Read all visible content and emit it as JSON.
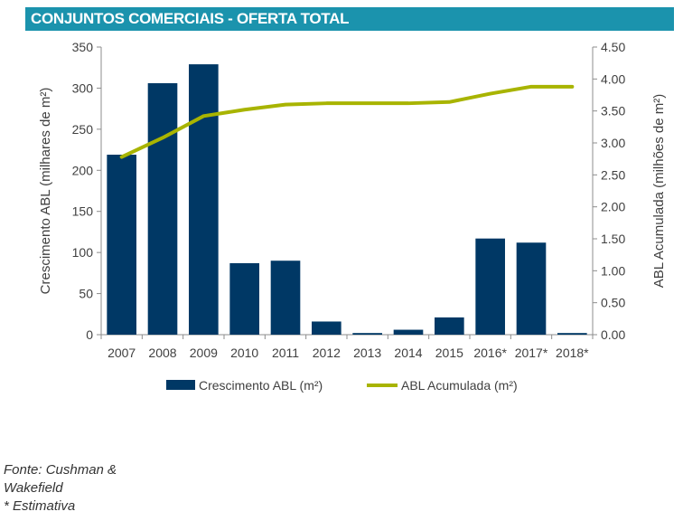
{
  "header": {
    "title": "CONJUNTOS COMERCIAIS - OFERTA TOTAL"
  },
  "chart_data": {
    "type": "bar",
    "title": "CONJUNTOS COMERCIAIS - OFERTA TOTAL",
    "categories": [
      "2007",
      "2008",
      "2009",
      "2010",
      "2011",
      "2012",
      "2013",
      "2014",
      "2015",
      "2016*",
      "2017*",
      "2018*"
    ],
    "series": [
      {
        "name": "Crescimento ABL (m²)",
        "type": "bar",
        "axis": "left",
        "color": "#003865",
        "values": [
          219,
          306,
          329,
          87,
          90,
          16,
          2,
          6,
          21,
          117,
          112,
          2
        ]
      },
      {
        "name": "ABL Acumulada (m²)",
        "type": "line",
        "axis": "right",
        "color": "#a8b400",
        "values": [
          2.78,
          3.08,
          3.42,
          3.52,
          3.6,
          3.62,
          3.62,
          3.62,
          3.64,
          3.77,
          3.88,
          3.88
        ]
      }
    ],
    "ylabel": "Crescimento ABL (milhares de m²)",
    "ylim": [
      0,
      350
    ],
    "yticks": [
      "0",
      "50",
      "100",
      "150",
      "200",
      "250",
      "300",
      "350"
    ],
    "y2label": "ABL Acumulada (milhões de m²)",
    "y2lim": [
      0,
      4.5
    ],
    "y2ticks": [
      "0.00",
      "0.50",
      "1.00",
      "1.50",
      "2.00",
      "2.50",
      "3.00",
      "3.50",
      "4.00",
      "4.50"
    ],
    "legend": "bottom",
    "grid": false
  },
  "source": {
    "line1": "Fonte: Cushman &",
    "line2": "Wakefield",
    "line3": "* Estimativa"
  }
}
